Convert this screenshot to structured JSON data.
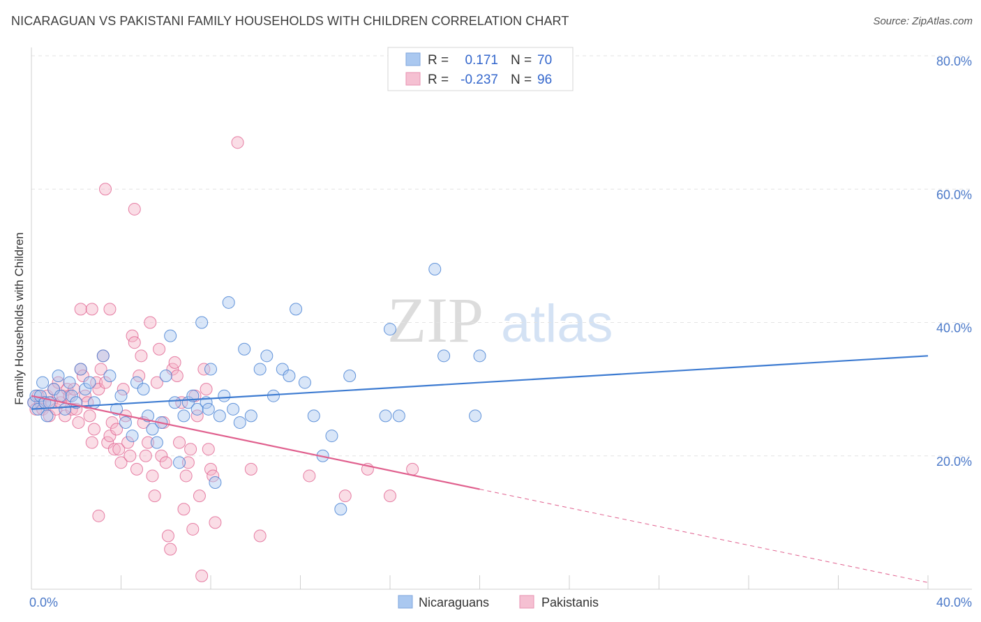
{
  "title": "NICARAGUAN VS PAKISTANI FAMILY HOUSEHOLDS WITH CHILDREN CORRELATION CHART",
  "source": "Source: ZipAtlas.com",
  "watermark": {
    "zip": "ZIP",
    "atlas": "atlas"
  },
  "colors": {
    "blue": "#3d7bd1",
    "blue_fill": "#aac8f0",
    "pink": "#e0608e",
    "pink_fill": "#f5b4c8",
    "axis_text": "#4a78c8"
  },
  "chart_data": {
    "type": "scatter",
    "title": "NICARAGUAN VS PAKISTANI FAMILY HOUSEHOLDS WITH CHILDREN CORRELATION CHART",
    "xlabel": "",
    "ylabel": "Family Households with Children",
    "xlim": [
      0,
      40
    ],
    "ylim": [
      0,
      80
    ],
    "x_tick_labels": [
      "0.0%",
      "40.0%"
    ],
    "y_ticks": [
      20,
      40,
      60,
      80
    ],
    "y_tick_labels": [
      "20.0%",
      "40.0%",
      "60.0%",
      "80.0%"
    ],
    "legend_stats": [
      {
        "r_label": "R =",
        "r_value": "0.171",
        "n_label": "N =",
        "n_value": "70"
      },
      {
        "r_label": "R =",
        "r_value": "-0.237",
        "n_label": "N =",
        "n_value": "96"
      }
    ],
    "series": [
      {
        "name": "Nicaraguans",
        "trend": {
          "x0": 0,
          "y0": 27.0,
          "x1": 40,
          "y1": 35.0
        },
        "points": [
          [
            0.1,
            28
          ],
          [
            0.2,
            29
          ],
          [
            0.3,
            27
          ],
          [
            0.4,
            29
          ],
          [
            0.5,
            31
          ],
          [
            0.6,
            28
          ],
          [
            0.7,
            26
          ],
          [
            0.8,
            28
          ],
          [
            1.0,
            30
          ],
          [
            1.2,
            32
          ],
          [
            1.3,
            29
          ],
          [
            1.5,
            27
          ],
          [
            1.7,
            31
          ],
          [
            1.8,
            29
          ],
          [
            2.0,
            28
          ],
          [
            2.2,
            33
          ],
          [
            2.4,
            30
          ],
          [
            2.6,
            31
          ],
          [
            2.8,
            28
          ],
          [
            3.2,
            35
          ],
          [
            3.5,
            32
          ],
          [
            3.8,
            27
          ],
          [
            4.0,
            29
          ],
          [
            4.2,
            25
          ],
          [
            4.5,
            23
          ],
          [
            4.7,
            31
          ],
          [
            5.0,
            30
          ],
          [
            5.2,
            26
          ],
          [
            5.4,
            24
          ],
          [
            5.6,
            22
          ],
          [
            5.8,
            25
          ],
          [
            6.0,
            32
          ],
          [
            6.2,
            38
          ],
          [
            6.4,
            28
          ],
          [
            6.6,
            19
          ],
          [
            6.8,
            26
          ],
          [
            7.0,
            28
          ],
          [
            7.2,
            29
          ],
          [
            7.4,
            27
          ],
          [
            7.6,
            40
          ],
          [
            7.8,
            28
          ],
          [
            7.9,
            27
          ],
          [
            8.0,
            33
          ],
          [
            8.2,
            16
          ],
          [
            8.4,
            26
          ],
          [
            8.6,
            29
          ],
          [
            8.8,
            43
          ],
          [
            9.0,
            27
          ],
          [
            9.3,
            25
          ],
          [
            9.5,
            36
          ],
          [
            9.8,
            26
          ],
          [
            10.2,
            33
          ],
          [
            10.5,
            35
          ],
          [
            10.8,
            29
          ],
          [
            11.2,
            33
          ],
          [
            11.5,
            32
          ],
          [
            11.8,
            42
          ],
          [
            12.2,
            31
          ],
          [
            12.6,
            26
          ],
          [
            13.0,
            20
          ],
          [
            13.4,
            23
          ],
          [
            13.8,
            12
          ],
          [
            14.2,
            32
          ],
          [
            15.8,
            26
          ],
          [
            16.0,
            39
          ],
          [
            16.4,
            26
          ],
          [
            18.0,
            48
          ],
          [
            18.4,
            35
          ],
          [
            19.8,
            26
          ],
          [
            20.0,
            35
          ]
        ]
      },
      {
        "name": "Pakistanis",
        "trend": {
          "x0": 0,
          "y0": 29.0,
          "x1": 40,
          "y1": 1.0
        },
        "points": [
          [
            0.1,
            28
          ],
          [
            0.2,
            27
          ],
          [
            0.3,
            29
          ],
          [
            0.4,
            28
          ],
          [
            0.5,
            27
          ],
          [
            0.6,
            28
          ],
          [
            0.7,
            29
          ],
          [
            0.8,
            26
          ],
          [
            0.9,
            28
          ],
          [
            1.0,
            30
          ],
          [
            1.1,
            27
          ],
          [
            1.2,
            31
          ],
          [
            1.3,
            28
          ],
          [
            1.4,
            29
          ],
          [
            1.5,
            26
          ],
          [
            1.6,
            30
          ],
          [
            1.7,
            29
          ],
          [
            1.8,
            27
          ],
          [
            1.9,
            30
          ],
          [
            2.0,
            27
          ],
          [
            2.1,
            25
          ],
          [
            2.2,
            33
          ],
          [
            2.3,
            32
          ],
          [
            2.4,
            29
          ],
          [
            2.5,
            28
          ],
          [
            2.6,
            26
          ],
          [
            2.7,
            22
          ],
          [
            2.8,
            24
          ],
          [
            2.9,
            31
          ],
          [
            3.0,
            30
          ],
          [
            3.1,
            33
          ],
          [
            3.2,
            35
          ],
          [
            3.3,
            31
          ],
          [
            3.4,
            22
          ],
          [
            3.5,
            23
          ],
          [
            3.6,
            25
          ],
          [
            3.7,
            21
          ],
          [
            3.8,
            24
          ],
          [
            3.9,
            21
          ],
          [
            4.0,
            19
          ],
          [
            4.1,
            30
          ],
          [
            4.2,
            26
          ],
          [
            4.3,
            22
          ],
          [
            4.4,
            20
          ],
          [
            4.5,
            38
          ],
          [
            4.6,
            37
          ],
          [
            4.7,
            18
          ],
          [
            4.8,
            32
          ],
          [
            4.9,
            35
          ],
          [
            5.0,
            25
          ],
          [
            5.1,
            20
          ],
          [
            5.2,
            22
          ],
          [
            5.3,
            40
          ],
          [
            5.4,
            17
          ],
          [
            5.5,
            14
          ],
          [
            5.6,
            31
          ],
          [
            5.7,
            36
          ],
          [
            5.8,
            20
          ],
          [
            5.9,
            25
          ],
          [
            6.0,
            19
          ],
          [
            6.1,
            8
          ],
          [
            6.2,
            6
          ],
          [
            6.3,
            33
          ],
          [
            6.4,
            34
          ],
          [
            6.5,
            32
          ],
          [
            6.6,
            22
          ],
          [
            6.7,
            28
          ],
          [
            6.8,
            12
          ],
          [
            6.9,
            17
          ],
          [
            7.0,
            19
          ],
          [
            7.1,
            21
          ],
          [
            7.2,
            9
          ],
          [
            7.3,
            29
          ],
          [
            7.4,
            26
          ],
          [
            7.5,
            14
          ],
          [
            7.6,
            2
          ],
          [
            7.7,
            33
          ],
          [
            7.8,
            30
          ],
          [
            7.9,
            21
          ],
          [
            8.0,
            18
          ],
          [
            8.1,
            17
          ],
          [
            8.2,
            10
          ],
          [
            3.5,
            42
          ],
          [
            2.2,
            42
          ],
          [
            2.7,
            42
          ],
          [
            3.3,
            60
          ],
          [
            4.6,
            57
          ],
          [
            9.2,
            67
          ],
          [
            9.8,
            18
          ],
          [
            10.2,
            8
          ],
          [
            12.4,
            17
          ],
          [
            14.0,
            14
          ],
          [
            15.0,
            18
          ],
          [
            16.0,
            14
          ],
          [
            17.0,
            18
          ],
          [
            3.0,
            11
          ]
        ]
      }
    ]
  }
}
